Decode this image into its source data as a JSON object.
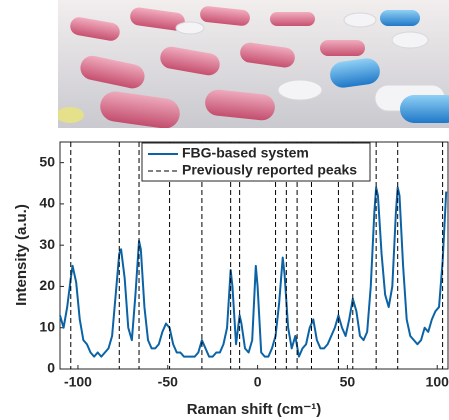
{
  "chart_data": {
    "type": "line",
    "xlabel": "Raman shift (cm⁻¹)",
    "ylabel": "Intensity (a.u.)",
    "xlim": [
      -110,
      106
    ],
    "ylim": [
      0,
      55
    ],
    "xticks": [
      -100,
      -50,
      0,
      50,
      100
    ],
    "yticks": [
      0,
      10,
      20,
      30,
      40,
      50
    ],
    "x": [
      -110,
      -108,
      -106,
      -104,
      -103,
      -101,
      -99,
      -97,
      -95,
      -93,
      -91,
      -89,
      -87,
      -85,
      -83,
      -81,
      -79,
      -77,
      -76,
      -74,
      -72,
      -70,
      -68,
      -66,
      -65,
      -63,
      -61,
      -59,
      -57,
      -55,
      -53,
      -51,
      -49,
      -47,
      -45,
      -43,
      -41,
      -39,
      -37,
      -35,
      -33,
      -31,
      -29,
      -27,
      -25,
      -23,
      -21,
      -19,
      -17,
      -15,
      -14,
      -12,
      -10,
      -9,
      -7,
      -5,
      -3,
      -1,
      0,
      2,
      4,
      6,
      8,
      10,
      12,
      14,
      15,
      17,
      19,
      21,
      23,
      25,
      27,
      29,
      31,
      33,
      35,
      37,
      39,
      41,
      43,
      45,
      47,
      49,
      51,
      53,
      55,
      57,
      59,
      61,
      63,
      65,
      66,
      67,
      69,
      71,
      73,
      75,
      77,
      78,
      79,
      81,
      83,
      85,
      87,
      89,
      91,
      93,
      95,
      97,
      99,
      101,
      103,
      105
    ],
    "series": [
      {
        "name": "FBG-based system",
        "color": "#0b63a6",
        "values": [
          13,
          10,
          15,
          22,
          25,
          21,
          12,
          7,
          6,
          4,
          3,
          4,
          3,
          4,
          5,
          8,
          18,
          28,
          29,
          22,
          10,
          7,
          18,
          31,
          29,
          15,
          7,
          5,
          5,
          6,
          9,
          11,
          10,
          6,
          4,
          4,
          3,
          3,
          3,
          3,
          4,
          7,
          5,
          3,
          3,
          4,
          4,
          6,
          10,
          24,
          20,
          6,
          13,
          11,
          5,
          4,
          7,
          25,
          20,
          4,
          3,
          3,
          5,
          8,
          16,
          27,
          23,
          10,
          5,
          8,
          3,
          5,
          6,
          10,
          12,
          7,
          5,
          5,
          6,
          8,
          10,
          13,
          10,
          8,
          12,
          17,
          14,
          8,
          7,
          9,
          20,
          38,
          44,
          42,
          28,
          18,
          15,
          20,
          38,
          44,
          42,
          25,
          12,
          8,
          7,
          6,
          7,
          10,
          9,
          12,
          14,
          15,
          26,
          43
        ]
      },
      {
        "name": "Previously reported peaks",
        "color": "#000000",
        "peaks": [
          -104,
          -77,
          -66,
          -49,
          -31,
          -15,
          -10,
          10,
          16,
          22,
          30,
          45,
          53,
          66,
          78,
          103
        ]
      }
    ],
    "legend": "top-center"
  }
}
